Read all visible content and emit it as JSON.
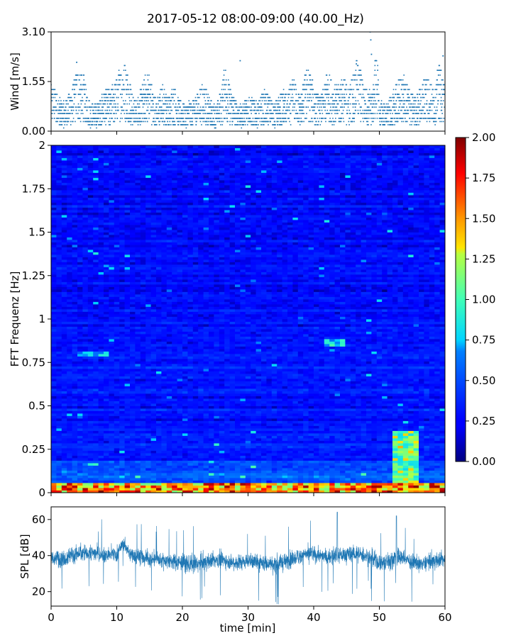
{
  "figure": {
    "title": "2017-05-12 08:00-09:00 (40.00_Hz)"
  },
  "chart_data": [
    {
      "type": "scatter",
      "ylabel": "Wind [m/s]",
      "xlabel": "",
      "xlim": [
        0,
        60
      ],
      "ylim": [
        0,
        3.1
      ],
      "yticks": [
        "0.00",
        "1.55",
        "3.10"
      ],
      "marker_color": "#1f77b4",
      "grid": false,
      "x_minutes": [
        0.5,
        1,
        1.5,
        2,
        2.5,
        3,
        3.5,
        4,
        4.5,
        5,
        5.5,
        6,
        6.5,
        7,
        7.5,
        8,
        8.5,
        9,
        9.5,
        10,
        10.5,
        11,
        11.5,
        12,
        12.5,
        13,
        13.5,
        14,
        14.5,
        15,
        15.5,
        16,
        16.5,
        17,
        17.5,
        18,
        18.5,
        19,
        19.5,
        20,
        20.5,
        21,
        21.5,
        22,
        22.5,
        23,
        23.5,
        24,
        24.5,
        25,
        25.5,
        26,
        26.5,
        27,
        27.5,
        28,
        28.5,
        29,
        29.5,
        30,
        30.5,
        31,
        31.5,
        32,
        32.5,
        33,
        33.5,
        34,
        34.5,
        35,
        35.5,
        36,
        36.5,
        37,
        37.5,
        38,
        38.5,
        39,
        39.5,
        40,
        40.5,
        41,
        41.5,
        42,
        42.5,
        43,
        43.5,
        44,
        44.5,
        45,
        45.5,
        46,
        46.5,
        47,
        47.5,
        48,
        48.5,
        49,
        49.5,
        50,
        50.5,
        51,
        51.5,
        52,
        52.5,
        53,
        53.5,
        54,
        54.5,
        55,
        55.5,
        56,
        56.5,
        57,
        57.5,
        58,
        58.5,
        59,
        59.5
      ],
      "wind_envelope_max": [
        1.4,
        1.2,
        1.0,
        0.9,
        1.1,
        1.3,
        1.6,
        2.1,
        1.8,
        1.7,
        1.2,
        0.9,
        0.8,
        0.9,
        1.0,
        1.3,
        1.4,
        1.2,
        1.5,
        1.7,
        2.0,
        2.2,
        2.1,
        1.6,
        1.1,
        0.9,
        1.3,
        1.6,
        1.9,
        1.8,
        1.3,
        1.0,
        1.2,
        1.5,
        1.2,
        1.1,
        1.4,
        1.3,
        1.0,
        0.9,
        0.8,
        1.0,
        0.9,
        1.1,
        1.3,
        1.5,
        1.4,
        1.1,
        0.9,
        0.8,
        1.0,
        1.4,
        2.1,
        1.6,
        1.3,
        1.0,
        0.9,
        0.8,
        1.0,
        1.2,
        1.1,
        1.0,
        0.9,
        1.1,
        1.3,
        1.2,
        1.0,
        0.9,
        1.0,
        1.2,
        1.3,
        1.1,
        1.5,
        1.7,
        1.3,
        1.2,
        1.6,
        2.1,
        1.9,
        1.5,
        1.2,
        1.1,
        1.3,
        1.9,
        1.7,
        1.5,
        1.4,
        1.6,
        1.8,
        1.5,
        1.4,
        1.9,
        2.2,
        2.1,
        1.6,
        1.4,
        1.3,
        1.2,
        3.1,
        1.0,
        0.9,
        0.8,
        1.0,
        1.2,
        1.4,
        1.7,
        1.8,
        1.6,
        1.4,
        1.2,
        1.1,
        1.3,
        1.5,
        1.9,
        1.7,
        1.4,
        1.3,
        2.3,
        1.8
      ]
    },
    {
      "type": "heatmap",
      "ylabel": "FFT Frequenz [Hz]",
      "xlabel": "",
      "xlim": [
        0,
        60
      ],
      "ylim": [
        0,
        2
      ],
      "yticks": [
        "0",
        "0.25",
        "0.5",
        "0.75",
        "1",
        "1.25",
        "1.5",
        "1.75",
        "2"
      ],
      "colormap": "jet",
      "colorbar": {
        "vmin": 0,
        "vmax": 2,
        "ticks": [
          "0.00",
          "0.25",
          "0.50",
          "0.75",
          "1.00",
          "1.25",
          "1.50",
          "1.75",
          "2.00"
        ]
      },
      "features": [
        {
          "note_x_range": [
            0,
            60
          ],
          "y_range": [
            0,
            0.05
          ],
          "level": 1.7
        },
        {
          "note_x_range": [
            52,
            56
          ],
          "y_range": [
            0,
            0.35
          ],
          "level": 1.2
        },
        {
          "note_x_range": [
            42,
            45
          ],
          "y_range": [
            0.84,
            0.88
          ],
          "level": 0.9
        },
        {
          "note_x_range": [
            4,
            9
          ],
          "y_range": [
            0.78,
            0.82
          ],
          "level": 0.8
        }
      ]
    },
    {
      "type": "line",
      "ylabel": "SPL [dB]",
      "xlabel": "time [min]",
      "xlim": [
        0,
        60
      ],
      "ylim": [
        12,
        67
      ],
      "xticks": [
        "0",
        "10",
        "20",
        "30",
        "40",
        "50",
        "60"
      ],
      "yticks": [
        "20",
        "40",
        "60"
      ],
      "line_color": "#1f77b4",
      "x_minutes": [
        0,
        2,
        4,
        6,
        8,
        10,
        11,
        12,
        14,
        16,
        18,
        20,
        22,
        24,
        26,
        28,
        30,
        32,
        34,
        36,
        38,
        40,
        42,
        43.5,
        44,
        46,
        48,
        50,
        52,
        52.5,
        54,
        56,
        58,
        60
      ],
      "spl_center": [
        38,
        39,
        41,
        42,
        40,
        41,
        47,
        41,
        39,
        38,
        37,
        36,
        35,
        37,
        38,
        36,
        37,
        36,
        35,
        37,
        40,
        41,
        39,
        40,
        40,
        41,
        40,
        36,
        37,
        40,
        38,
        35,
        37,
        38
      ],
      "spl_spread": [
        8,
        9,
        9,
        8,
        8,
        8,
        6,
        8,
        8,
        8,
        8,
        8,
        9,
        8,
        8,
        8,
        8,
        8,
        8,
        9,
        8,
        8,
        8,
        9,
        9,
        8,
        8,
        9,
        9,
        9,
        8,
        8,
        8,
        8
      ]
    }
  ]
}
